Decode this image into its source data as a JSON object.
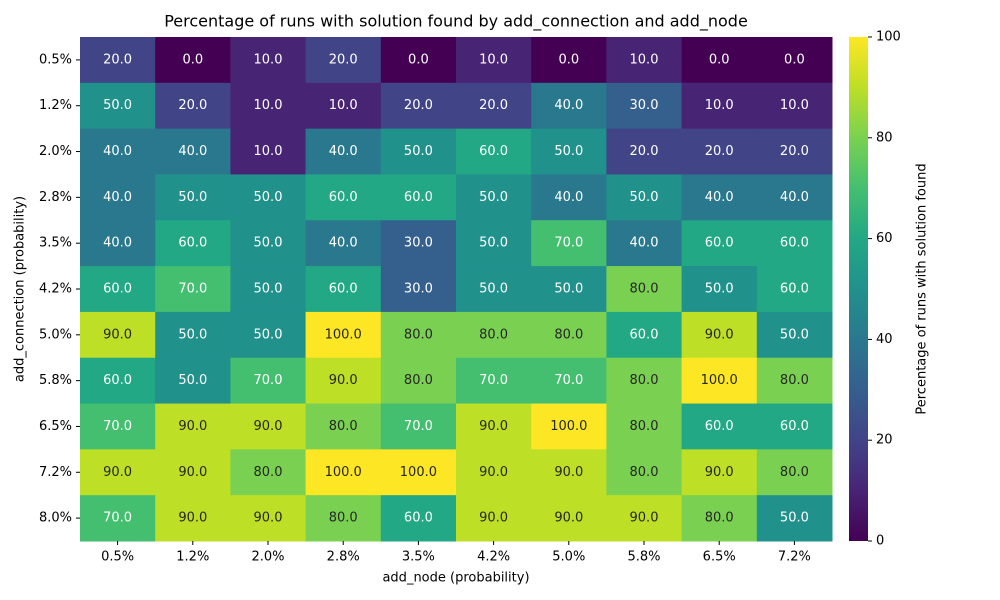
{
  "chart_data": {
    "type": "heatmap",
    "title": "Percentage of runs with solution found by add_connection and add_node",
    "x_label": "add_node (probability)",
    "y_label": "add_connection (probability)",
    "x_categories": [
      "0.5%",
      "1.2%",
      "2.0%",
      "2.8%",
      "3.5%",
      "4.2%",
      "5.0%",
      "5.8%",
      "6.5%",
      "7.2%"
    ],
    "y_categories": [
      "0.5%",
      "1.2%",
      "2.0%",
      "2.8%",
      "3.5%",
      "4.2%",
      "5.0%",
      "5.8%",
      "6.5%",
      "7.2%",
      "8.0%"
    ],
    "values": [
      [
        20,
        0,
        10,
        20,
        0,
        10,
        0,
        10,
        0,
        0
      ],
      [
        50,
        20,
        10,
        10,
        20,
        20,
        40,
        30,
        10,
        10
      ],
      [
        40,
        40,
        10,
        40,
        50,
        60,
        50,
        20,
        20,
        20
      ],
      [
        40,
        50,
        50,
        60,
        60,
        50,
        40,
        50,
        40,
        40
      ],
      [
        40,
        60,
        50,
        40,
        30,
        50,
        70,
        40,
        60,
        60
      ],
      [
        60,
        70,
        50,
        60,
        30,
        50,
        50,
        80,
        50,
        60
      ],
      [
        90,
        50,
        50,
        100,
        80,
        80,
        80,
        60,
        90,
        50
      ],
      [
        60,
        50,
        70,
        90,
        80,
        70,
        70,
        80,
        100,
        80
      ],
      [
        70,
        90,
        90,
        80,
        70,
        90,
        100,
        80,
        60,
        60
      ],
      [
        90,
        90,
        80,
        100,
        100,
        90,
        90,
        80,
        90,
        80
      ],
      [
        70,
        90,
        90,
        80,
        60,
        90,
        90,
        90,
        80,
        50
      ]
    ],
    "value_labels": [
      [
        "20.0",
        "0.0",
        "10.0",
        "20.0",
        "0.0",
        "10.0",
        "0.0",
        "10.0",
        "0.0",
        "0.0"
      ],
      [
        "50.0",
        "20.0",
        "10.0",
        "10.0",
        "20.0",
        "20.0",
        "40.0",
        "30.0",
        "10.0",
        "10.0"
      ],
      [
        "40.0",
        "40.0",
        "10.0",
        "40.0",
        "50.0",
        "60.0",
        "50.0",
        "20.0",
        "20.0",
        "20.0"
      ],
      [
        "40.0",
        "50.0",
        "50.0",
        "60.0",
        "60.0",
        "50.0",
        "40.0",
        "50.0",
        "40.0",
        "40.0"
      ],
      [
        "40.0",
        "60.0",
        "50.0",
        "40.0",
        "30.0",
        "50.0",
        "70.0",
        "40.0",
        "60.0",
        "60.0"
      ],
      [
        "60.0",
        "70.0",
        "50.0",
        "60.0",
        "30.0",
        "50.0",
        "50.0",
        "80.0",
        "50.0",
        "60.0"
      ],
      [
        "90.0",
        "50.0",
        "50.0",
        "100.0",
        "80.0",
        "80.0",
        "80.0",
        "60.0",
        "90.0",
        "50.0"
      ],
      [
        "60.0",
        "50.0",
        "70.0",
        "90.0",
        "80.0",
        "70.0",
        "70.0",
        "80.0",
        "100.0",
        "80.0"
      ],
      [
        "70.0",
        "90.0",
        "90.0",
        "80.0",
        "70.0",
        "90.0",
        "100.0",
        "80.0",
        "60.0",
        "60.0"
      ],
      [
        "90.0",
        "90.0",
        "80.0",
        "100.0",
        "100.0",
        "90.0",
        "90.0",
        "80.0",
        "90.0",
        "80.0"
      ],
      [
        "70.0",
        "90.0",
        "90.0",
        "80.0",
        "60.0",
        "90.0",
        "90.0",
        "90.0",
        "80.0",
        "50.0"
      ]
    ],
    "colormap": "viridis",
    "colorbar_label": "Percentage of runs with solution found",
    "clim": [
      0,
      100
    ],
    "cticks": [
      0,
      20,
      40,
      60,
      80,
      100
    ]
  }
}
